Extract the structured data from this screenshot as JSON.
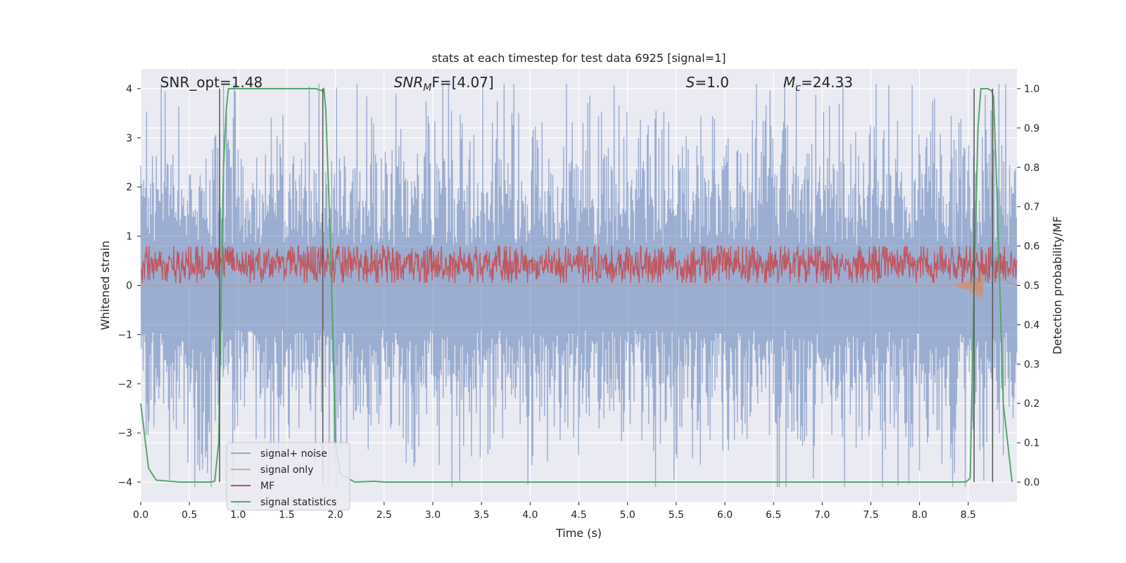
{
  "chart_data": {
    "type": "line",
    "title": "stats at each timestep for test data 6925 [signal=1]",
    "xlabel": "Time (s)",
    "ylabel": "Whitened strain",
    "y2label": "Detection probability/MF",
    "xlim": [
      0,
      9
    ],
    "ylim": [
      -4.4,
      4.4
    ],
    "y2lim": [
      -0.05,
      1.05
    ],
    "xticks": [
      "0.0",
      "0.5",
      "1.0",
      "1.5",
      "2.0",
      "2.5",
      "3.0",
      "3.5",
      "4.0",
      "4.5",
      "5.0",
      "5.5",
      "6.0",
      "6.5",
      "7.0",
      "7.5",
      "8.0",
      "8.5"
    ],
    "yticks": [
      "4",
      "3",
      "2",
      "1",
      "0",
      "−1",
      "−2",
      "−3",
      "−4"
    ],
    "y2ticks": [
      "1.0",
      "0.9",
      "0.8",
      "0.7",
      "0.6",
      "0.5",
      "0.4",
      "0.3",
      "0.2",
      "0.1",
      "0.0"
    ],
    "grid": true,
    "legend_position": "lower-left",
    "annotations": [
      {
        "text": "SNR_opt=1.48",
        "x": 0.2
      },
      {
        "text": "SNR",
        "sub": "M",
        "suffix": "F=[4.07]",
        "x": 2.6
      },
      {
        "text": "S",
        "suffix": "=1.0",
        "x": 5.6
      },
      {
        "text": "M",
        "sub": "c",
        "suffix": "=24.33",
        "x": 6.6
      }
    ],
    "vlines": [
      0.81,
      1.87,
      8.56,
      8.75
    ],
    "series": [
      {
        "name": "signal+ noise",
        "color": "#4c72b0",
        "axis": "left",
        "noise_amplitude": 1.0
      },
      {
        "name": "signal only",
        "color": "#dd8452",
        "axis": "left",
        "burst": [
          8.3,
          8.65
        ],
        "min": -0.35
      },
      {
        "name": "MF",
        "color": "#c44e52",
        "axis": "left",
        "range": [
          0.05,
          0.8
        ]
      },
      {
        "name": "signal statistics",
        "color": "#55a868",
        "axis": "right",
        "x": [
          0.0,
          0.08,
          0.16,
          0.3,
          0.4,
          0.6,
          0.72,
          0.76,
          0.8,
          0.85,
          0.88,
          0.9,
          1.0,
          1.2,
          1.5,
          1.7,
          1.8,
          1.86,
          1.88,
          1.9,
          1.95,
          2.0,
          2.05,
          2.2,
          2.4,
          2.5,
          3.0,
          5.0,
          7.0,
          8.0,
          8.3,
          8.42,
          8.48,
          8.52,
          8.56,
          8.6,
          8.63,
          8.7,
          8.74,
          8.76,
          8.8,
          8.86,
          8.95
        ],
        "y": [
          0.2,
          0.035,
          0.005,
          0.002,
          0.0,
          0.0,
          0.0,
          0.002,
          0.1,
          0.8,
          0.95,
          1.0,
          1.0,
          1.0,
          1.0,
          1.0,
          1.0,
          0.995,
          1.0,
          0.95,
          0.6,
          0.1,
          0.02,
          0.0,
          0.002,
          0.0,
          0.0,
          0.0,
          0.0,
          0.0,
          0.0,
          0.0,
          0.001,
          0.01,
          0.5,
          0.9,
          1.0,
          1.0,
          0.995,
          0.98,
          0.7,
          0.2,
          0.0
        ]
      }
    ]
  }
}
